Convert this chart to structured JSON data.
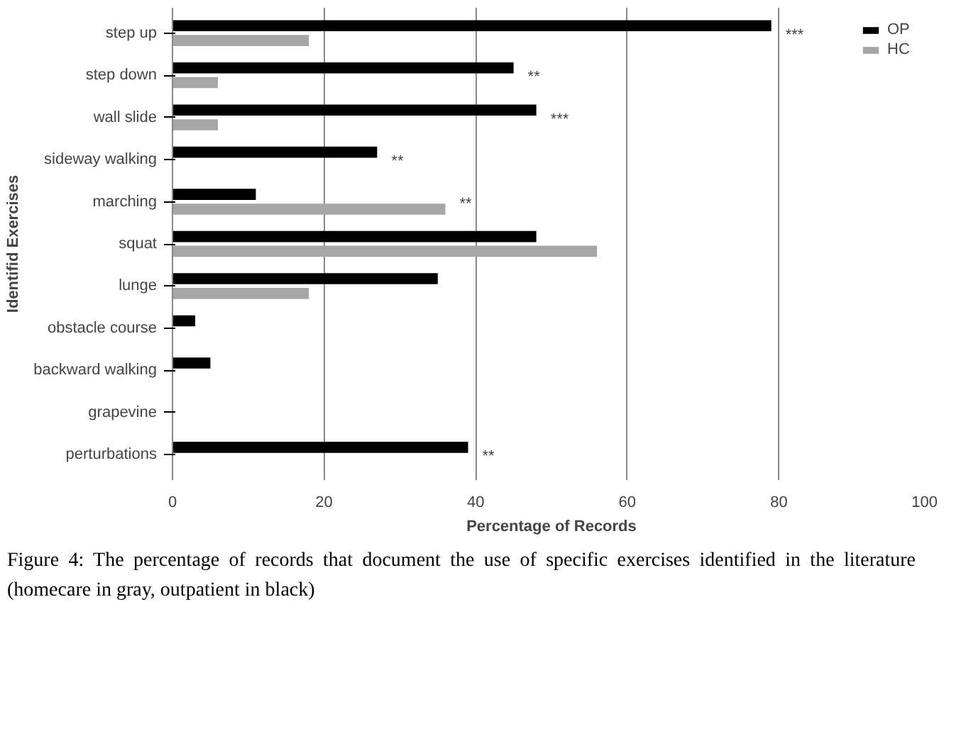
{
  "chart_data": {
    "type": "bar",
    "orientation": "horizontal",
    "xlabel": "Percentage of Records",
    "ylabel": "Identifid Exercises",
    "categories": [
      "step up",
      "step down",
      "wall slide",
      "sideway walking",
      "marching",
      "squat",
      "lunge",
      "obstacle course",
      "backward walking",
      "grapevine",
      "perturbations"
    ],
    "series": [
      {
        "name": "OP",
        "color": "#000000",
        "values": [
          79,
          45,
          48,
          27,
          11,
          48,
          35,
          3,
          5,
          0,
          39
        ]
      },
      {
        "name": "HC",
        "color": "#a6a6a6",
        "values": [
          18,
          6,
          6,
          0,
          36,
          56,
          18,
          0,
          0,
          0,
          0
        ]
      }
    ],
    "xlim": [
      0,
      100
    ],
    "xticks": [
      0,
      20,
      40,
      60,
      80,
      100
    ],
    "grid": "x",
    "legend": "top right",
    "annotations": [
      {
        "text": "***",
        "x": 79,
        "y": "step up"
      },
      {
        "text": "**",
        "x": 45,
        "y": "step down"
      },
      {
        "text": "***",
        "x": 48,
        "y": "wall slide"
      },
      {
        "text": "**",
        "x": 27,
        "y": "sideway walking"
      },
      {
        "text": "**",
        "x": 36,
        "y": "marching"
      },
      {
        "text": "**",
        "x": 39,
        "y": "perturbations"
      },
      "Figure 4: The percentage of records that document the use of specific exercises identified in the literature (homecare in gray, outpatient in black)"
    ]
  }
}
